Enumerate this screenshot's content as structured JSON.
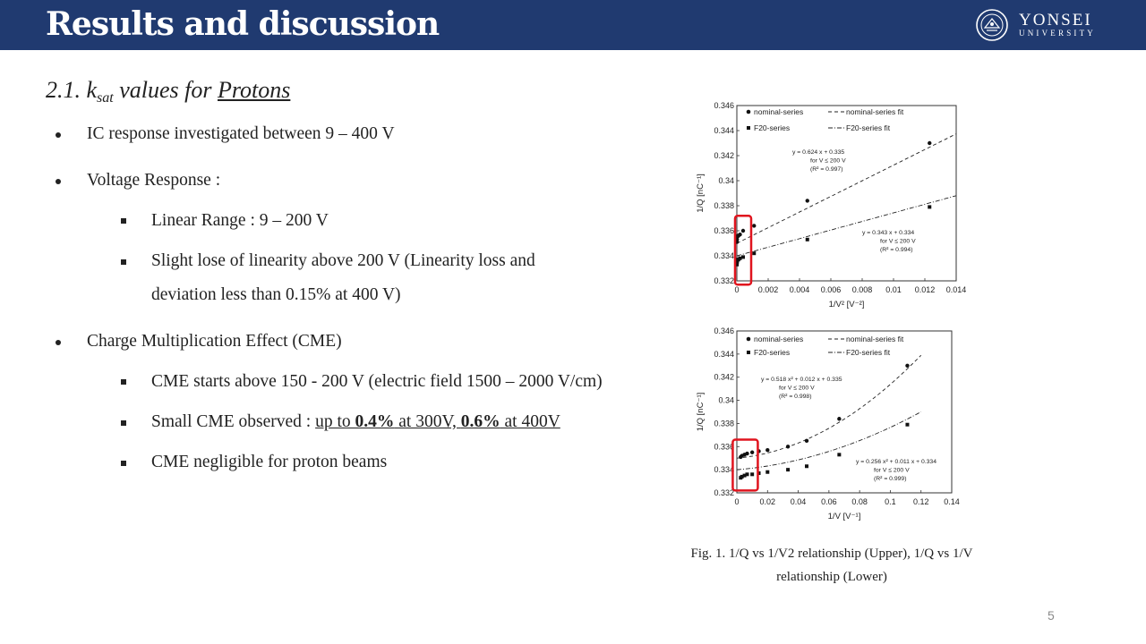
{
  "header": {
    "title": "Results and discussion",
    "logo_name": "YONSEI",
    "logo_sub": "UNIVERSITY"
  },
  "section": {
    "prefix": "2.1. ",
    "k": "k",
    "k_sub": "sat",
    "middle": " values for ",
    "subject": "Protons"
  },
  "bullets": {
    "b1": "IC response investigated between 9 – 400 V",
    "b2": "Voltage Response :",
    "b2_1": "Linear Range : 9 – 200 V",
    "b2_2_l1": "Slight lose of linearity above 200 V (Linearity loss and",
    "b2_2_l2": "deviation less than 0.15% at 400 V)",
    "b3": "Charge Multiplication Effect (CME)",
    "b3_1": "CME starts above 150 - 200 V (electric field 1500 – 2000 V/cm)",
    "b3_2_a": "Small CME observed : ",
    "b3_2_b": "up to ",
    "b3_2_c": "0.4%",
    "b3_2_d": " at 300V, ",
    "b3_2_e": "0.6%",
    "b3_2_f": " at 400V",
    "b3_3": "CME negligible for proton beams"
  },
  "caption": {
    "line1": "Fig. 1. 1/Q vs 1/V2 relationship (Upper), 1/Q vs 1/V",
    "line2": "relationship (Lower)"
  },
  "page_number": "5",
  "colors": {
    "header_bg": "#203a70",
    "highlight": "#e0141e"
  },
  "chart_data": [
    {
      "type": "scatter",
      "title": "",
      "xlabel": "1/V² [V⁻²]",
      "ylabel": "1/Q [nC⁻¹]",
      "xlim": [
        0,
        0.014
      ],
      "ylim": [
        0.332,
        0.346
      ],
      "xticks": [
        0,
        0.002,
        0.004,
        0.006,
        0.008,
        0.01,
        0.012,
        0.014
      ],
      "xtick_labels": [
        "0",
        "0.002",
        "0.004",
        "0.006",
        "0.008",
        "0.01",
        "0.012",
        "0.014"
      ],
      "yticks": [
        0.332,
        0.334,
        0.336,
        0.338,
        0.34,
        0.342,
        0.344,
        0.346
      ],
      "ytick_labels": [
        "0.332",
        "0.334",
        "0.336",
        "0.338",
        "0.34",
        "0.342",
        "0.344",
        "0.346"
      ],
      "legend": [
        "nominal-series",
        "nominal-series fit",
        "F20-series",
        "F20-series fit"
      ],
      "series": [
        {
          "name": "nominal-series",
          "marker": "circle",
          "x": [
            6.3e-06,
            1.11e-05,
            2.5e-05,
            4.44e-05,
            0.0001,
            0.0002,
            0.0004,
            0.0011,
            0.0045,
            0.0123
          ],
          "y": [
            0.3351,
            0.3353,
            0.3355,
            0.3356,
            0.3356,
            0.3357,
            0.336,
            0.3364,
            0.3384,
            0.343
          ]
        },
        {
          "name": "F20-series",
          "marker": "square",
          "x": [
            6.3e-06,
            1.11e-05,
            2.5e-05,
            4.44e-05,
            0.0001,
            0.0002,
            0.0004,
            0.0011,
            0.0045,
            0.0123
          ],
          "y": [
            0.3333,
            0.3335,
            0.3336,
            0.3337,
            0.3337,
            0.3338,
            0.3339,
            0.3342,
            0.3353,
            0.3379
          ]
        }
      ],
      "fits": [
        {
          "name": "nominal-series fit",
          "style": "dashed",
          "a2": 0,
          "a1": 0.624,
          "b": 0.335,
          "xmax": 0.014
        },
        {
          "name": "F20-series fit",
          "style": "dashdot",
          "a2": 0,
          "a1": 0.343,
          "b": 0.334,
          "xmax": 0.014
        }
      ],
      "annotations": [
        {
          "lines": [
            "y = 0.624 x + 0.335",
            "for V ≤ 200 V",
            "(R² = 0.997)"
          ]
        },
        {
          "lines": [
            "y = 0.343 x + 0.334",
            "for V ≤ 200 V",
            "(R² = 0.994)"
          ]
        }
      ]
    },
    {
      "type": "scatter",
      "title": "",
      "xlabel": "1/V [V⁻¹]",
      "ylabel": "1/Q [nC⁻¹]",
      "xlim": [
        0,
        0.14
      ],
      "ylim": [
        0.332,
        0.346
      ],
      "xticks": [
        0,
        0.02,
        0.04,
        0.06,
        0.08,
        0.1,
        0.12,
        0.14
      ],
      "xtick_labels": [
        "0",
        "0.02",
        "0.04",
        "0.06",
        "0.08",
        "0.1",
        "0.12",
        "0.14"
      ],
      "yticks": [
        0.332,
        0.334,
        0.336,
        0.338,
        0.34,
        0.342,
        0.344,
        0.346
      ],
      "ytick_labels": [
        "0.332",
        "0.334",
        "0.336",
        "0.338",
        "0.34",
        "0.342",
        "0.344",
        "0.346"
      ],
      "legend": [
        "nominal-series",
        "nominal-series fit",
        "F20-series",
        "F20-series fit"
      ],
      "series": [
        {
          "name": "nominal-series",
          "marker": "circle",
          "x": [
            0.0025,
            0.0033,
            0.005,
            0.0067,
            0.01,
            0.0143,
            0.02,
            0.0333,
            0.0455,
            0.0667,
            0.1111
          ],
          "y": [
            0.3351,
            0.3352,
            0.3353,
            0.3354,
            0.3355,
            0.3356,
            0.3357,
            0.336,
            0.3365,
            0.3384,
            0.343
          ]
        },
        {
          "name": "F20-series",
          "marker": "square",
          "x": [
            0.0025,
            0.0033,
            0.005,
            0.0067,
            0.01,
            0.0143,
            0.02,
            0.0333,
            0.0455,
            0.0667,
            0.1111
          ],
          "y": [
            0.3333,
            0.3334,
            0.3335,
            0.3336,
            0.3336,
            0.3337,
            0.3338,
            0.334,
            0.3343,
            0.3353,
            0.3379
          ]
        }
      ],
      "fits": [
        {
          "name": "nominal-series fit",
          "style": "dashed",
          "a2": 0.518,
          "a1": 0.012,
          "b": 0.335,
          "xmax": 0.12
        },
        {
          "name": "F20-series fit",
          "style": "dashdot",
          "a2": 0.256,
          "a1": 0.011,
          "b": 0.334,
          "xmax": 0.12
        }
      ],
      "annotations": [
        {
          "lines": [
            "y = 0.518 x² + 0.012 x + 0.335",
            "for V ≤ 200 V",
            "(R² = 0.998)"
          ]
        },
        {
          "lines": [
            "y = 0.256 x² + 0.011 x + 0.334",
            "for V ≤ 200 V",
            "(R² = 0.999)"
          ]
        }
      ]
    }
  ]
}
